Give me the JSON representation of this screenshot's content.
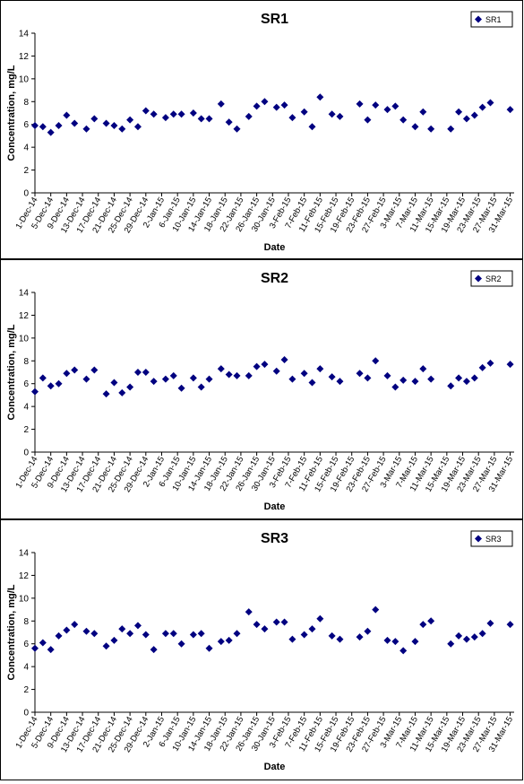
{
  "colors": {
    "marker": "#000080",
    "axis": "#000000",
    "background": "#ffffff"
  },
  "shared": {
    "xlabel": "Date",
    "ylabel": "Concentration, mg/L",
    "ylim": [
      0,
      14
    ],
    "yticks": [
      "0",
      "2",
      "4",
      "6",
      "8",
      "10",
      "12",
      "14"
    ],
    "xlim": [
      "1-Dec-14",
      "1-Apr-15"
    ],
    "xtick_labels": [
      "1-Dec-14",
      "5-Dec-14",
      "9-Dec-14",
      "13-Dec-14",
      "17-Dec-14",
      "21-Dec-14",
      "25-Dec-14",
      "29-Dec-14",
      "2-Jan-15",
      "6-Jan-15",
      "10-Jan-15",
      "14-Jan-15",
      "18-Jan-15",
      "22-Jan-15",
      "26-Jan-15",
      "30-Jan-15",
      "3-Feb-15",
      "7-Feb-15",
      "11-Feb-15",
      "15-Feb-15",
      "19-Feb-15",
      "23-Feb-15",
      "27-Feb-15",
      "3-Mar-15",
      "7-Mar-15",
      "11-Mar-15",
      "15-Mar-15",
      "19-Mar-15",
      "23-Mar-15",
      "27-Mar-15",
      "31-Mar-15"
    ]
  },
  "chart_data": [
    {
      "type": "scatter",
      "title": "SR1",
      "xlabel": "Date",
      "ylabel": "Concentration, mg/L",
      "ylim": [
        0,
        14
      ],
      "grid": false,
      "legend": "top-right",
      "series": [
        {
          "name": "SR1",
          "points": [
            [
              "1-Dec-14",
              5.9
            ],
            [
              "3-Dec-14",
              5.8
            ],
            [
              "5-Dec-14",
              5.3
            ],
            [
              "7-Dec-14",
              5.9
            ],
            [
              "9-Dec-14",
              6.8
            ],
            [
              "11-Dec-14",
              6.1
            ],
            [
              "14-Dec-14",
              5.6
            ],
            [
              "16-Dec-14",
              6.5
            ],
            [
              "19-Dec-14",
              6.1
            ],
            [
              "21-Dec-14",
              5.9
            ],
            [
              "23-Dec-14",
              5.6
            ],
            [
              "25-Dec-14",
              6.4
            ],
            [
              "27-Dec-14",
              5.8
            ],
            [
              "29-Dec-14",
              7.2
            ],
            [
              "31-Dec-14",
              6.9
            ],
            [
              "3-Jan-15",
              6.6
            ],
            [
              "5-Jan-15",
              6.9
            ],
            [
              "7-Jan-15",
              6.9
            ],
            [
              "10-Jan-15",
              7.0
            ],
            [
              "12-Jan-15",
              6.5
            ],
            [
              "14-Jan-15",
              6.5
            ],
            [
              "17-Jan-15",
              7.8
            ],
            [
              "19-Jan-15",
              6.2
            ],
            [
              "21-Jan-15",
              5.6
            ],
            [
              "24-Jan-15",
              6.7
            ],
            [
              "26-Jan-15",
              7.6
            ],
            [
              "28-Jan-15",
              8.0
            ],
            [
              "31-Jan-15",
              7.5
            ],
            [
              "2-Feb-15",
              7.7
            ],
            [
              "4-Feb-15",
              6.6
            ],
            [
              "7-Feb-15",
              7.1
            ],
            [
              "9-Feb-15",
              5.8
            ],
            [
              "11-Feb-15",
              8.4
            ],
            [
              "14-Feb-15",
              6.9
            ],
            [
              "16-Feb-15",
              6.7
            ],
            [
              "21-Feb-15",
              7.8
            ],
            [
              "23-Feb-15",
              6.4
            ],
            [
              "25-Feb-15",
              7.7
            ],
            [
              "28-Feb-15",
              7.3
            ],
            [
              "2-Mar-15",
              7.6
            ],
            [
              "4-Mar-15",
              6.4
            ],
            [
              "7-Mar-15",
              5.8
            ],
            [
              "9-Mar-15",
              7.1
            ],
            [
              "11-Mar-15",
              5.6
            ],
            [
              "16-Mar-15",
              5.6
            ],
            [
              "18-Mar-15",
              7.1
            ],
            [
              "20-Mar-15",
              6.5
            ],
            [
              "22-Mar-15",
              6.8
            ],
            [
              "24-Mar-15",
              7.5
            ],
            [
              "26-Mar-15",
              7.9
            ],
            [
              "31-Mar-15",
              7.3
            ]
          ]
        }
      ]
    },
    {
      "type": "scatter",
      "title": "SR2",
      "xlabel": "Date",
      "ylabel": "Concentration, mg/L",
      "ylim": [
        0,
        14
      ],
      "grid": false,
      "legend": "top-right",
      "series": [
        {
          "name": "SR2",
          "points": [
            [
              "1-Dec-14",
              5.3
            ],
            [
              "3-Dec-14",
              6.5
            ],
            [
              "5-Dec-14",
              5.8
            ],
            [
              "7-Dec-14",
              6.0
            ],
            [
              "9-Dec-14",
              6.9
            ],
            [
              "11-Dec-14",
              7.2
            ],
            [
              "14-Dec-14",
              6.4
            ],
            [
              "16-Dec-14",
              7.2
            ],
            [
              "19-Dec-14",
              5.1
            ],
            [
              "21-Dec-14",
              6.1
            ],
            [
              "23-Dec-14",
              5.2
            ],
            [
              "25-Dec-14",
              5.7
            ],
            [
              "27-Dec-14",
              7.0
            ],
            [
              "29-Dec-14",
              7.0
            ],
            [
              "31-Dec-14",
              6.2
            ],
            [
              "3-Jan-15",
              6.4
            ],
            [
              "5-Jan-15",
              6.7
            ],
            [
              "7-Jan-15",
              5.6
            ],
            [
              "10-Jan-15",
              6.5
            ],
            [
              "12-Jan-15",
              5.7
            ],
            [
              "14-Jan-15",
              6.4
            ],
            [
              "17-Jan-15",
              7.3
            ],
            [
              "19-Jan-15",
              6.8
            ],
            [
              "21-Jan-15",
              6.7
            ],
            [
              "24-Jan-15",
              6.7
            ],
            [
              "26-Jan-15",
              7.5
            ],
            [
              "28-Jan-15",
              7.7
            ],
            [
              "31-Jan-15",
              7.1
            ],
            [
              "2-Feb-15",
              8.1
            ],
            [
              "4-Feb-15",
              6.4
            ],
            [
              "7-Feb-15",
              6.9
            ],
            [
              "9-Feb-15",
              6.1
            ],
            [
              "11-Feb-15",
              7.3
            ],
            [
              "14-Feb-15",
              6.6
            ],
            [
              "16-Feb-15",
              6.2
            ],
            [
              "21-Feb-15",
              6.9
            ],
            [
              "23-Feb-15",
              6.5
            ],
            [
              "25-Feb-15",
              8.0
            ],
            [
              "28-Feb-15",
              6.7
            ],
            [
              "2-Mar-15",
              5.7
            ],
            [
              "4-Mar-15",
              6.3
            ],
            [
              "7-Mar-15",
              6.2
            ],
            [
              "9-Mar-15",
              7.3
            ],
            [
              "11-Mar-15",
              6.4
            ],
            [
              "16-Mar-15",
              5.8
            ],
            [
              "18-Mar-15",
              6.5
            ],
            [
              "20-Mar-15",
              6.2
            ],
            [
              "22-Mar-15",
              6.5
            ],
            [
              "24-Mar-15",
              7.4
            ],
            [
              "26-Mar-15",
              7.8
            ],
            [
              "31-Mar-15",
              7.7
            ]
          ]
        }
      ]
    },
    {
      "type": "scatter",
      "title": "SR3",
      "xlabel": "Date",
      "ylabel": "Concentration, mg/L",
      "ylim": [
        0,
        14
      ],
      "grid": false,
      "legend": "top-right",
      "series": [
        {
          "name": "SR3",
          "points": [
            [
              "1-Dec-14",
              5.6
            ],
            [
              "3-Dec-14",
              6.1
            ],
            [
              "5-Dec-14",
              5.5
            ],
            [
              "7-Dec-14",
              6.7
            ],
            [
              "9-Dec-14",
              7.2
            ],
            [
              "11-Dec-14",
              7.7
            ],
            [
              "14-Dec-14",
              7.1
            ],
            [
              "16-Dec-14",
              6.9
            ],
            [
              "19-Dec-14",
              5.8
            ],
            [
              "21-Dec-14",
              6.3
            ],
            [
              "23-Dec-14",
              7.3
            ],
            [
              "25-Dec-14",
              6.9
            ],
            [
              "27-Dec-14",
              7.6
            ],
            [
              "29-Dec-14",
              6.8
            ],
            [
              "31-Dec-14",
              5.5
            ],
            [
              "3-Jan-15",
              6.9
            ],
            [
              "5-Jan-15",
              6.9
            ],
            [
              "7-Jan-15",
              6.0
            ],
            [
              "10-Jan-15",
              6.8
            ],
            [
              "12-Jan-15",
              6.9
            ],
            [
              "14-Jan-15",
              5.6
            ],
            [
              "17-Jan-15",
              6.2
            ],
            [
              "19-Jan-15",
              6.3
            ],
            [
              "21-Jan-15",
              6.9
            ],
            [
              "24-Jan-15",
              8.8
            ],
            [
              "26-Jan-15",
              7.7
            ],
            [
              "28-Jan-15",
              7.3
            ],
            [
              "31-Jan-15",
              7.9
            ],
            [
              "2-Feb-15",
              7.9
            ],
            [
              "4-Feb-15",
              6.4
            ],
            [
              "7-Feb-15",
              6.8
            ],
            [
              "9-Feb-15",
              7.3
            ],
            [
              "11-Feb-15",
              8.2
            ],
            [
              "14-Feb-15",
              6.7
            ],
            [
              "16-Feb-15",
              6.4
            ],
            [
              "21-Feb-15",
              6.6
            ],
            [
              "23-Feb-15",
              7.1
            ],
            [
              "25-Feb-15",
              9.0
            ],
            [
              "28-Feb-15",
              6.3
            ],
            [
              "2-Mar-15",
              6.2
            ],
            [
              "4-Mar-15",
              5.4
            ],
            [
              "7-Mar-15",
              6.2
            ],
            [
              "9-Mar-15",
              7.7
            ],
            [
              "11-Mar-15",
              8.0
            ],
            [
              "16-Mar-15",
              6.0
            ],
            [
              "18-Mar-15",
              6.7
            ],
            [
              "20-Mar-15",
              6.4
            ],
            [
              "22-Mar-15",
              6.6
            ],
            [
              "24-Mar-15",
              6.9
            ],
            [
              "26-Mar-15",
              7.8
            ],
            [
              "31-Mar-15",
              7.7
            ]
          ]
        }
      ]
    }
  ]
}
